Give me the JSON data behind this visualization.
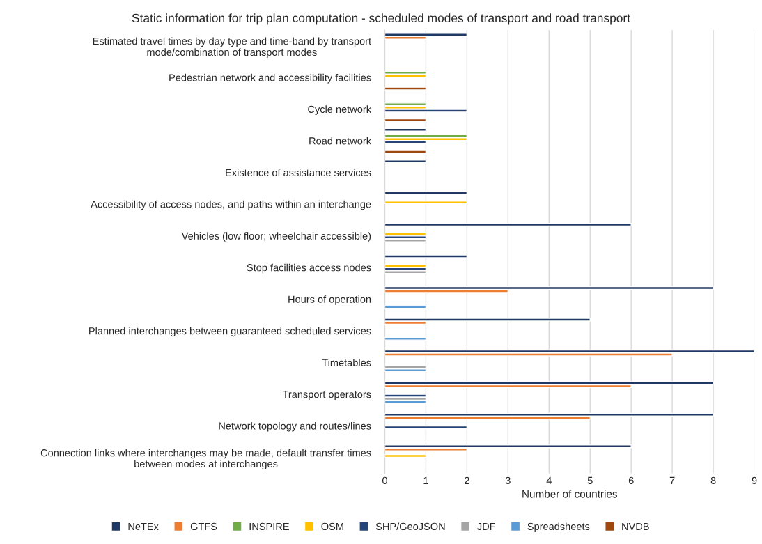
{
  "chart_data": {
    "type": "bar",
    "orientation": "horizontal",
    "title": "Static information for trip plan computation - scheduled modes of transport and road transport",
    "xlabel": "Number of countries",
    "categories": [
      "Estimated travel times by day type and time-band by transport\nmode/combination of transport modes",
      "Pedestrian network and accessibility facilities",
      "Cycle network",
      "Road network",
      "Existence of assistance services",
      "Accessibility of access nodes, and paths within an interchange",
      "Vehicles (low floor; wheelchair accessible)",
      "Stop facilities access nodes",
      "Hours of operation",
      "Planned interchanges between guaranteed scheduled services",
      "Timetables",
      "Transport operators",
      "Network topology and routes/lines",
      "Connection links where interchanges may be made, default transfer times\nbetween modes at interchanges"
    ],
    "series": [
      {
        "name": "NeTEx",
        "color": "#203864",
        "values": [
          2,
          null,
          null,
          1,
          1,
          2,
          6,
          2,
          8,
          5,
          9,
          8,
          8,
          6
        ]
      },
      {
        "name": "GTFS",
        "color": "#ed7d31",
        "values": [
          1,
          null,
          null,
          null,
          null,
          null,
          null,
          null,
          3,
          1,
          7,
          6,
          5,
          2
        ]
      },
      {
        "name": "INSPIRE",
        "color": "#70ad47",
        "values": [
          null,
          1,
          1,
          2,
          null,
          null,
          null,
          null,
          null,
          null,
          null,
          null,
          null,
          null
        ]
      },
      {
        "name": "OSM",
        "color": "#ffc000",
        "values": [
          null,
          1,
          1,
          2,
          null,
          2,
          1,
          1,
          null,
          null,
          null,
          null,
          null,
          1
        ]
      },
      {
        "name": "SHP/GeoJSON",
        "color": "#264478",
        "values": [
          null,
          null,
          2,
          1,
          null,
          null,
          1,
          1,
          null,
          null,
          null,
          1,
          2,
          null
        ]
      },
      {
        "name": "JDF",
        "color": "#a5a5a5",
        "values": [
          null,
          null,
          null,
          null,
          null,
          null,
          1,
          1,
          null,
          null,
          1,
          1,
          null,
          null
        ]
      },
      {
        "name": "Spreadsheets",
        "color": "#5b9bd5",
        "values": [
          null,
          null,
          null,
          null,
          null,
          null,
          null,
          null,
          1,
          1,
          1,
          1,
          null,
          null
        ]
      },
      {
        "name": "NVDB",
        "color": "#9e480e",
        "values": [
          null,
          1,
          1,
          1,
          null,
          null,
          null,
          null,
          null,
          null,
          null,
          null,
          null,
          null
        ]
      }
    ],
    "xlim": [
      0,
      9
    ],
    "xticks": [
      0,
      1,
      2,
      3,
      4,
      5,
      6,
      7,
      8,
      9
    ],
    "grid": "x",
    "legend": "bottom"
  }
}
